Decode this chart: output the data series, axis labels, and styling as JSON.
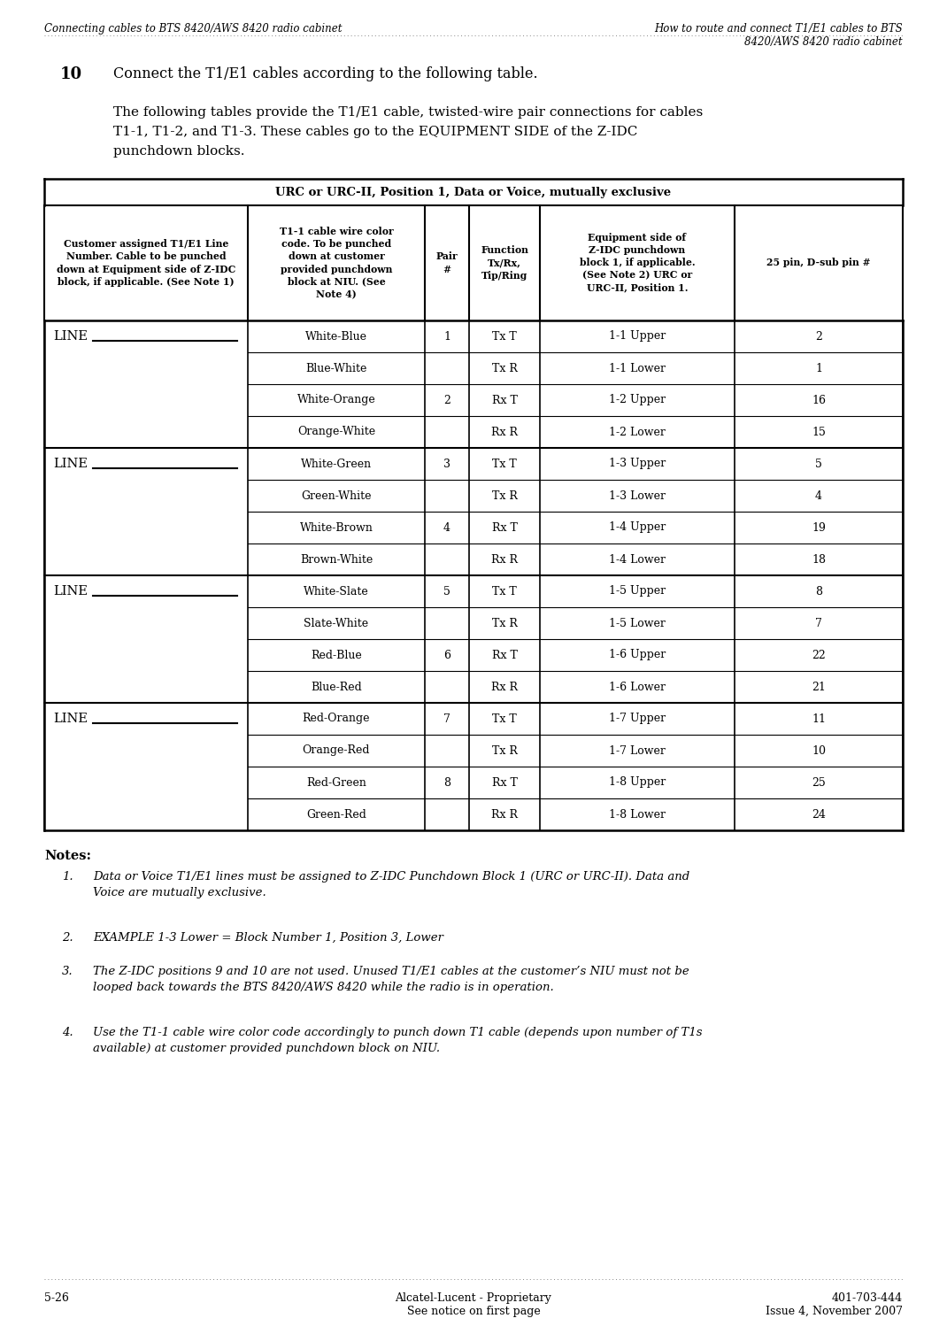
{
  "page_title_left": "Connecting cables to BTS 8420/AWS 8420 radio cabinet",
  "page_title_right": "How to route and connect T1/E1 cables to BTS\n8420/AWS 8420 radio cabinet",
  "step_number": "10",
  "step_text": "Connect the T1/E1 cables according to the following table.",
  "para_text_line1": "The following tables provide the T1/E1 cable, twisted-wire pair connections for cables",
  "para_text_line2": "T1-1, T1-2, and T1-3. These cables go to the EQUIPMENT SIDE of the Z-IDC",
  "para_text_line3": "punchdown blocks.",
  "table_title": "URC or URC-II, Position 1, Data or Voice, mutually exclusive",
  "col_headers": [
    "Customer assigned T1/E1 Line\nNumber. Cable to be punched\ndown at Equipment side of Z-IDC\nblock, if applicable. (See Note 1)",
    "T1-1 cable wire color\ncode. To be punched\ndown at customer\nprovided punchdown\nblock at NIU. (See\nNote 4)",
    "Pair\n#",
    "Function\nTx/Rx,\nTip/Ring",
    "Equipment side of\nZ-IDC punchdown\nblock 1, if applicable.\n(See Note 2) URC or\nURC-II, Position 1.",
    "25 pin, D-sub pin #"
  ],
  "line_groups": [
    {
      "line_label": "LINE",
      "rows": [
        [
          "White-Blue",
          "1",
          "Tx T",
          "1-1 Upper",
          "2"
        ],
        [
          "Blue-White",
          "",
          "Tx R",
          "1-1 Lower",
          "1"
        ],
        [
          "White-Orange",
          "2",
          "Rx T",
          "1-2 Upper",
          "16"
        ],
        [
          "Orange-White",
          "",
          "Rx R",
          "1-2 Lower",
          "15"
        ]
      ]
    },
    {
      "line_label": "LINE",
      "rows": [
        [
          "White-Green",
          "3",
          "Tx T",
          "1-3 Upper",
          "5"
        ],
        [
          "Green-White",
          "",
          "Tx R",
          "1-3 Lower",
          "4"
        ],
        [
          "White-Brown",
          "4",
          "Rx T",
          "1-4 Upper",
          "19"
        ],
        [
          "Brown-White",
          "",
          "Rx R",
          "1-4 Lower",
          "18"
        ]
      ]
    },
    {
      "line_label": "LINE",
      "rows": [
        [
          "White-Slate",
          "5",
          "Tx T",
          "1-5 Upper",
          "8"
        ],
        [
          "Slate-White",
          "",
          "Tx R",
          "1-5 Lower",
          "7"
        ],
        [
          "Red-Blue",
          "6",
          "Rx T",
          "1-6 Upper",
          "22"
        ],
        [
          "Blue-Red",
          "",
          "Rx R",
          "1-6 Lower",
          "21"
        ]
      ]
    },
    {
      "line_label": "LINE",
      "rows": [
        [
          "Red-Orange",
          "7",
          "Tx T",
          "1-7 Upper",
          "11"
        ],
        [
          "Orange-Red",
          "",
          "Tx R",
          "1-7 Lower",
          "10"
        ],
        [
          "Red-Green",
          "8",
          "Rx T",
          "1-8 Upper",
          "25"
        ],
        [
          "Green-Red",
          "",
          "Rx R",
          "1-8 Lower",
          "24"
        ]
      ]
    }
  ],
  "notes_title": "Notes:",
  "notes": [
    "Data or Voice T1/E1 lines must be assigned to Z-IDC Punchdown Block 1 (URC or URC-II). Data and\nVoice are mutually exclusive.",
    "EXAMPLE 1-3 Lower = Block Number 1, Position 3, Lower",
    "The Z-IDC positions 9 and 10 are not used. Unused T1/E1 cables at the customer’s NIU must not be\nlooped back towards the BTS 8420/AWS 8420 while the radio is in operation.",
    "Use the T1-1 cable wire color code accordingly to punch down T1 cable (depends upon number of T1s\navailable) at customer provided punchdown block on NIU."
  ],
  "footer_left": "5-26",
  "footer_center": "Alcatel-Lucent - Proprietary\nSee notice on first page",
  "footer_right": "401-703-444\nIssue 4, November 2007",
  "bg_color": "#ffffff",
  "text_color": "#000000"
}
